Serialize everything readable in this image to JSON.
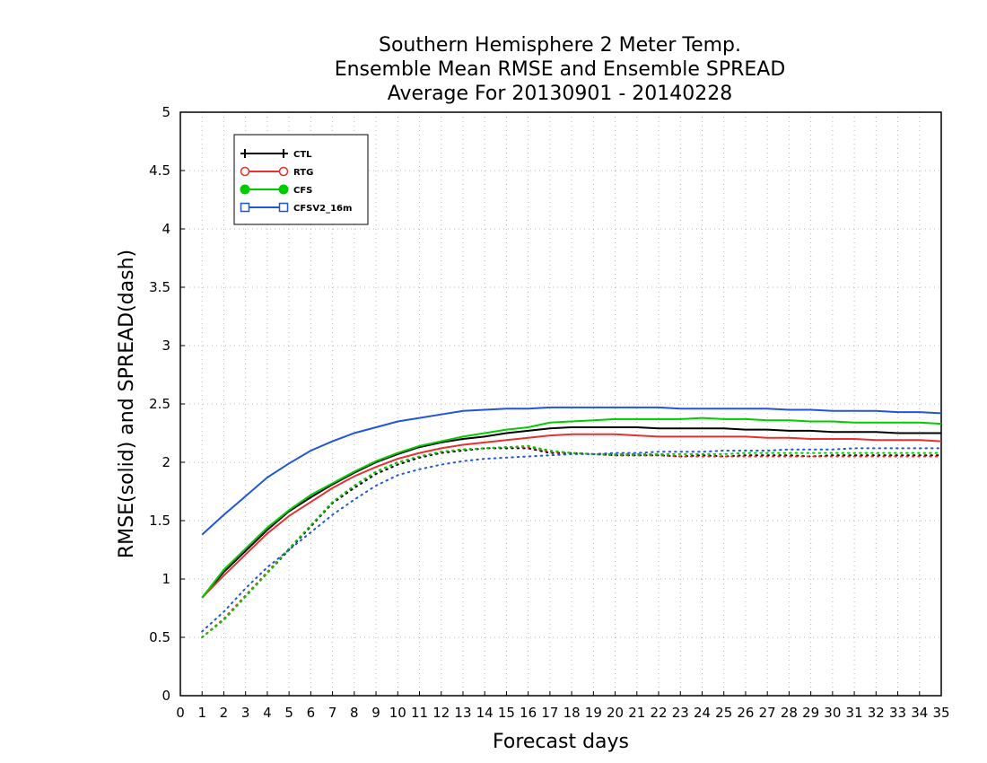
{
  "chart_data": {
    "type": "line",
    "title_lines": [
      "Southern Hemisphere 2 Meter Temp.",
      "Ensemble Mean RMSE and Ensemble SPREAD",
      "Average For 20130901 - 20140228"
    ],
    "xlabel": "Forecast days",
    "ylabel": "RMSE(solid) and SPREAD(dash)",
    "xlim": [
      0,
      35
    ],
    "ylim": [
      0,
      5
    ],
    "x_ticks": [
      0,
      1,
      2,
      3,
      4,
      5,
      6,
      7,
      8,
      9,
      10,
      11,
      12,
      13,
      14,
      15,
      16,
      17,
      18,
      19,
      20,
      21,
      22,
      23,
      24,
      25,
      26,
      27,
      28,
      29,
      30,
      31,
      32,
      33,
      34,
      35
    ],
    "y_ticks": [
      0,
      0.5,
      1,
      1.5,
      2,
      2.5,
      3,
      3.5,
      4,
      4.5,
      5
    ],
    "y_tick_labels": [
      "0",
      "0.5",
      "1",
      "1.5",
      "2",
      "2.5",
      "3",
      "3.5",
      "4",
      "4.5",
      "5"
    ],
    "grid": true,
    "legend_position": "top-left",
    "x": [
      1,
      2,
      3,
      4,
      5,
      6,
      7,
      8,
      9,
      10,
      11,
      12,
      13,
      14,
      15,
      16,
      17,
      18,
      19,
      20,
      21,
      22,
      23,
      24,
      25,
      26,
      27,
      28,
      29,
      30,
      31,
      32,
      33,
      34,
      35
    ],
    "series": [
      {
        "name": "CTL",
        "color": "#000000",
        "marker": "plus",
        "rmse": [
          0.84,
          1.06,
          1.24,
          1.42,
          1.58,
          1.7,
          1.81,
          1.91,
          2.0,
          2.07,
          2.13,
          2.17,
          2.2,
          2.22,
          2.25,
          2.27,
          2.29,
          2.3,
          2.3,
          2.3,
          2.3,
          2.29,
          2.29,
          2.29,
          2.29,
          2.28,
          2.28,
          2.27,
          2.27,
          2.26,
          2.26,
          2.26,
          2.25,
          2.25,
          2.25
        ],
        "spread": [
          0.5,
          0.65,
          0.85,
          1.05,
          1.25,
          1.45,
          1.65,
          1.78,
          1.9,
          1.98,
          2.04,
          2.08,
          2.1,
          2.12,
          2.12,
          2.12,
          2.08,
          2.08,
          2.07,
          2.06,
          2.06,
          2.06,
          2.05,
          2.06,
          2.05,
          2.06,
          2.06,
          2.06,
          2.05,
          2.06,
          2.06,
          2.06,
          2.06,
          2.06,
          2.06
        ]
      },
      {
        "name": "RTG",
        "color": "#e83030",
        "marker": "circle-open",
        "rmse": [
          0.84,
          1.03,
          1.21,
          1.39,
          1.54,
          1.66,
          1.78,
          1.88,
          1.96,
          2.03,
          2.08,
          2.12,
          2.15,
          2.17,
          2.19,
          2.21,
          2.23,
          2.24,
          2.24,
          2.24,
          2.23,
          2.22,
          2.22,
          2.22,
          2.22,
          2.22,
          2.21,
          2.21,
          2.2,
          2.2,
          2.2,
          2.19,
          2.19,
          2.19,
          2.18
        ],
        "spread": [
          0.5,
          0.66,
          0.86,
          1.06,
          1.26,
          1.46,
          1.66,
          1.8,
          1.92,
          2.0,
          2.05,
          2.09,
          2.11,
          2.12,
          2.13,
          2.13,
          2.09,
          2.08,
          2.07,
          2.06,
          2.06,
          2.06,
          2.05,
          2.05,
          2.05,
          2.05,
          2.05,
          2.05,
          2.05,
          2.05,
          2.05,
          2.05,
          2.05,
          2.05,
          2.05
        ]
      },
      {
        "name": "CFS",
        "color": "#00cc00",
        "marker": "circle-filled",
        "rmse": [
          0.84,
          1.08,
          1.26,
          1.44,
          1.59,
          1.72,
          1.82,
          1.92,
          2.01,
          2.08,
          2.14,
          2.18,
          2.22,
          2.25,
          2.28,
          2.3,
          2.34,
          2.35,
          2.36,
          2.37,
          2.37,
          2.37,
          2.37,
          2.38,
          2.37,
          2.37,
          2.36,
          2.36,
          2.35,
          2.35,
          2.34,
          2.34,
          2.34,
          2.34,
          2.33
        ],
        "spread": [
          0.5,
          0.65,
          0.85,
          1.05,
          1.26,
          1.46,
          1.66,
          1.8,
          1.92,
          2.0,
          2.05,
          2.09,
          2.11,
          2.12,
          2.13,
          2.14,
          2.1,
          2.08,
          2.07,
          2.07,
          2.07,
          2.07,
          2.07,
          2.07,
          2.07,
          2.08,
          2.08,
          2.08,
          2.08,
          2.08,
          2.08,
          2.08,
          2.08,
          2.08,
          2.08
        ]
      },
      {
        "name": "CFSV2_16m",
        "color": "#2255dd",
        "marker": "square-open",
        "rmse": [
          1.38,
          1.55,
          1.71,
          1.87,
          1.99,
          2.1,
          2.18,
          2.25,
          2.3,
          2.35,
          2.38,
          2.41,
          2.44,
          2.45,
          2.46,
          2.46,
          2.47,
          2.47,
          2.47,
          2.47,
          2.47,
          2.47,
          2.46,
          2.46,
          2.46,
          2.46,
          2.46,
          2.45,
          2.45,
          2.44,
          2.44,
          2.44,
          2.43,
          2.43,
          2.42
        ],
        "spread": [
          0.55,
          0.72,
          0.92,
          1.1,
          1.25,
          1.4,
          1.55,
          1.68,
          1.8,
          1.89,
          1.94,
          1.98,
          2.01,
          2.03,
          2.04,
          2.05,
          2.06,
          2.07,
          2.07,
          2.08,
          2.08,
          2.09,
          2.09,
          2.09,
          2.1,
          2.1,
          2.1,
          2.11,
          2.11,
          2.11,
          2.12,
          2.12,
          2.12,
          2.12,
          2.12
        ]
      }
    ]
  }
}
